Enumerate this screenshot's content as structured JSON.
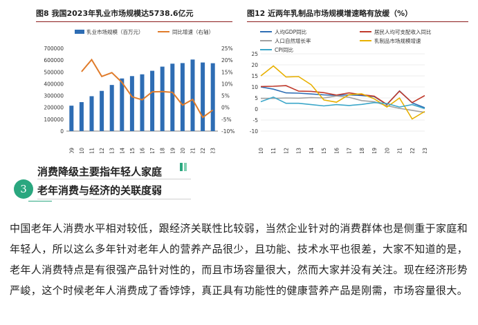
{
  "chart_data": [
    {
      "type": "bar",
      "title": "图8 我国2023年乳业市场规模达5738.6亿元",
      "categories": [
        "2009",
        "2010",
        "2011",
        "2012",
        "2013",
        "2014",
        "2015",
        "2016",
        "2017",
        "2018",
        "2019",
        "2020",
        "2021",
        "2022",
        "2023"
      ],
      "series": [
        {
          "name": "乳业市场规模（百万元）",
          "type": "bar",
          "axis": "left",
          "color": "#2e6db4",
          "values": [
            215000,
            245000,
            295000,
            340000,
            390000,
            445000,
            465000,
            480000,
            510000,
            545000,
            570000,
            575000,
            605000,
            580000,
            573860
          ]
        },
        {
          "name": "同比增速（右轴）",
          "type": "line",
          "axis": "right",
          "color": "#e07b2a",
          "values": [
            null,
            15.1,
            20.2,
            13.1,
            14.7,
            10.6,
            4.5,
            3.2,
            6.6,
            6.7,
            6.4,
            1.0,
            3.4,
            -4.2,
            -1.1
          ]
        }
      ],
      "ylim": [
        0,
        700000
      ],
      "yticks": [
        "0",
        "100000",
        "200000",
        "300000",
        "400000",
        "500000",
        "600000",
        "700000"
      ],
      "y2lim": [
        -10,
        25
      ],
      "y2ticks": [
        "-10%",
        "-5%",
        "0%",
        "5%",
        "10%",
        "15%",
        "20%",
        "25%"
      ],
      "legend": "top"
    },
    {
      "type": "line",
      "title": "图12 近两年乳制品市场规模增速略有放缓（%）",
      "categories": [
        "2010",
        "2011",
        "2012",
        "2013",
        "2014",
        "2015",
        "2016",
        "2017",
        "2018",
        "2019",
        "2020",
        "2021",
        "2022",
        "2023"
      ],
      "series": [
        {
          "name": "人均GDP同比",
          "color": "#2e6db4",
          "values": [
            10.0,
            9.0,
            7.3,
            7.2,
            6.8,
            6.4,
            6.2,
            6.4,
            6.1,
            5.6,
            2.0,
            8.2,
            2.8,
            0.6
          ]
        },
        {
          "name": "居民人均可支配收入同比",
          "color": "#c0392b",
          "values": [
            10.2,
            10.3,
            10.6,
            8.1,
            8.0,
            7.4,
            6.3,
            7.3,
            6.5,
            5.8,
            2.1,
            8.1,
            2.9,
            6.1
          ]
        },
        {
          "name": "人口自然增长率",
          "color": "#a0a0a0",
          "values": [
            4.8,
            4.8,
            5.0,
            4.9,
            5.2,
            5.0,
            5.9,
            5.3,
            3.8,
            3.3,
            1.5,
            0.3,
            -0.6,
            -1.5
          ]
        },
        {
          "name": "乳制品市场规模增速",
          "color": "#e8b000",
          "values": [
            15.0,
            19.5,
            14.5,
            14.7,
            11.0,
            4.1,
            3.1,
            6.5,
            6.9,
            4.6,
            0.9,
            5.0,
            -4.5,
            -1.1
          ]
        },
        {
          "name": "CPI同比",
          "color": "#3aa6c9",
          "values": [
            3.3,
            5.4,
            2.6,
            2.6,
            2.0,
            1.4,
            2.0,
            1.6,
            2.1,
            2.9,
            2.5,
            0.9,
            2.0,
            0.2
          ]
        }
      ],
      "ylim": [
        -10,
        25
      ],
      "yticks": [
        "-10",
        "-5",
        "0",
        "5",
        "10",
        "15",
        "20",
        "25"
      ],
      "legend": "top"
    }
  ],
  "section": {
    "number": "3",
    "line1": "消费降级主要指年轻人家庭",
    "line2": "老年消费与经济的关联度弱"
  },
  "paragraph": "中国老年人消费水平相对较低，跟经济关联性比较弱，当然企业针对的消费群体也是侧重于家庭和年轻人，所以这么多年针对老年人的营养产品很少，且功能、技术水平也很差，大家不知道的是，老年人消费特点是有很强产品针对性的，而且市场容量很大，然而大家并没有关注。现在经济形势严峻，这个时候老年人消费成了香饽饽，真正具有功能性的健康营养产品是刚需，市场容量很大。",
  "colors": {
    "accent": "#2aa77f",
    "title_rule": "#8a1a1a"
  }
}
